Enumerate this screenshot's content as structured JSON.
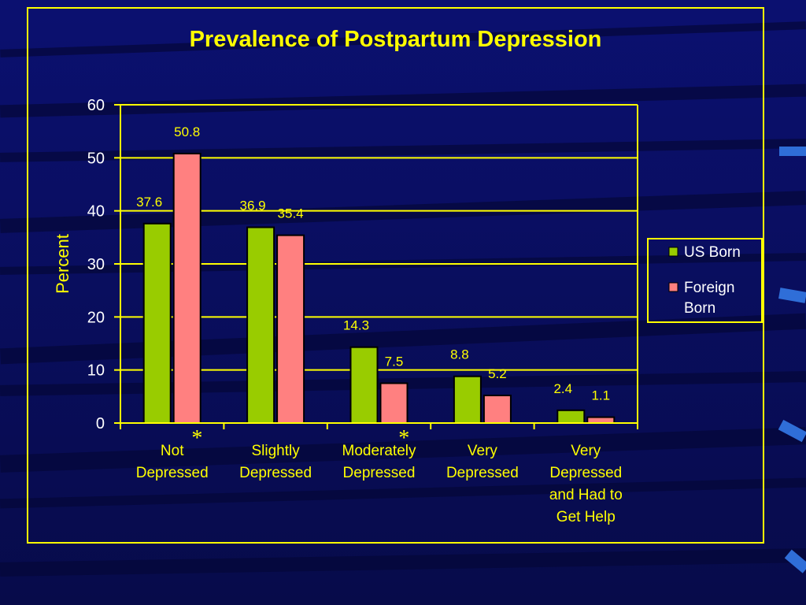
{
  "slide": {
    "background": "#0a0f5e",
    "accent": "#ffff00"
  },
  "chart_data": {
    "type": "bar",
    "title": "Prevalence of Postpartum Depression",
    "ylabel": "Percent",
    "xlabel": "",
    "ylim": [
      0,
      60
    ],
    "yticks": [
      0,
      10,
      20,
      30,
      40,
      50,
      60
    ],
    "grid": true,
    "legend_position": "right",
    "categories": [
      "Not Depressed",
      "Slightly Depressed",
      "Moderately Depressed",
      "Very Depressed",
      "Very Depressed and Had to Get Help"
    ],
    "category_lines": [
      [
        "Not",
        "Depressed"
      ],
      [
        "Slightly",
        "Depressed"
      ],
      [
        "Moderately",
        "Depressed"
      ],
      [
        "Very",
        "Depressed"
      ],
      [
        "Very",
        "Depressed",
        "and Had to",
        "Get Help"
      ]
    ],
    "series": [
      {
        "name": "US Born",
        "values": [
          37.6,
          36.9,
          14.3,
          8.8,
          2.4
        ],
        "color": "#99cc00",
        "value_labels": [
          "37.6",
          "36.9",
          "14.3",
          "8.8",
          "2.4"
        ]
      },
      {
        "name": "Foreign Born",
        "values": [
          50.8,
          35.4,
          7.5,
          5.2,
          1.1
        ],
        "color": "#ff8080",
        "value_labels": [
          "50.8",
          "35.4",
          "7.5",
          "5.2",
          "1.1"
        ]
      }
    ],
    "legend_lines": [
      [
        "US Born"
      ],
      [
        "Foreign",
        "Born"
      ]
    ],
    "annotations": [
      {
        "text": "*",
        "category_index": 0
      },
      {
        "text": "*",
        "category_index": 2
      }
    ]
  }
}
